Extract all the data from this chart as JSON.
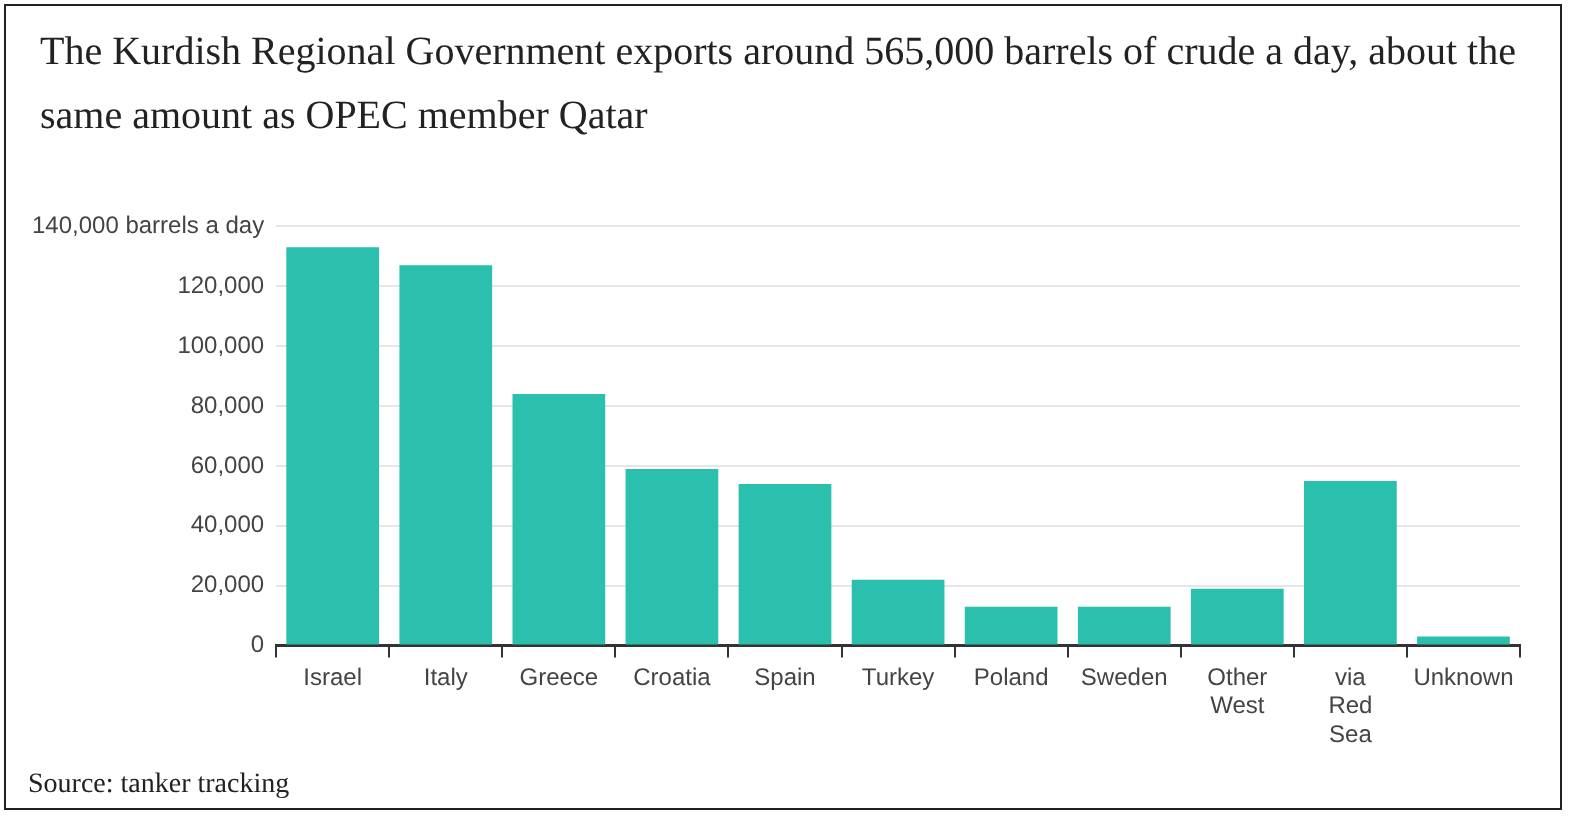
{
  "chart_data": {
    "type": "bar",
    "title": "The Kurdish Regional Government exports around 565,000 barrels of crude a day, about the same amount as OPEC member Qatar",
    "categories": [
      "Israel",
      "Italy",
      "Greece",
      "Croatia",
      "Spain",
      "Turkey",
      "Poland",
      "Sweden",
      "Other West",
      "via Red Sea",
      "Unknown"
    ],
    "values": [
      133000,
      127000,
      84000,
      59000,
      54000,
      22000,
      13000,
      13000,
      19000,
      55000,
      3000
    ],
    "color": "#2bbfae",
    "ylim": [
      0,
      140000
    ],
    "yticks": [
      0,
      {
        "value": 20000,
        "label": "20,000"
      },
      {
        "value": 40000,
        "label": "40,000"
      },
      {
        "value": 60000,
        "label": "60,000"
      },
      {
        "value": 80000,
        "label": "80,000"
      },
      {
        "value": 100000,
        "label": "100,000"
      },
      {
        "value": 120000,
        "label": "120,000"
      },
      {
        "value": 140000,
        "label": "140,000 barrels a day"
      }
    ],
    "grid": "y",
    "annotations": [
      "Source: tanker tracking"
    ]
  }
}
